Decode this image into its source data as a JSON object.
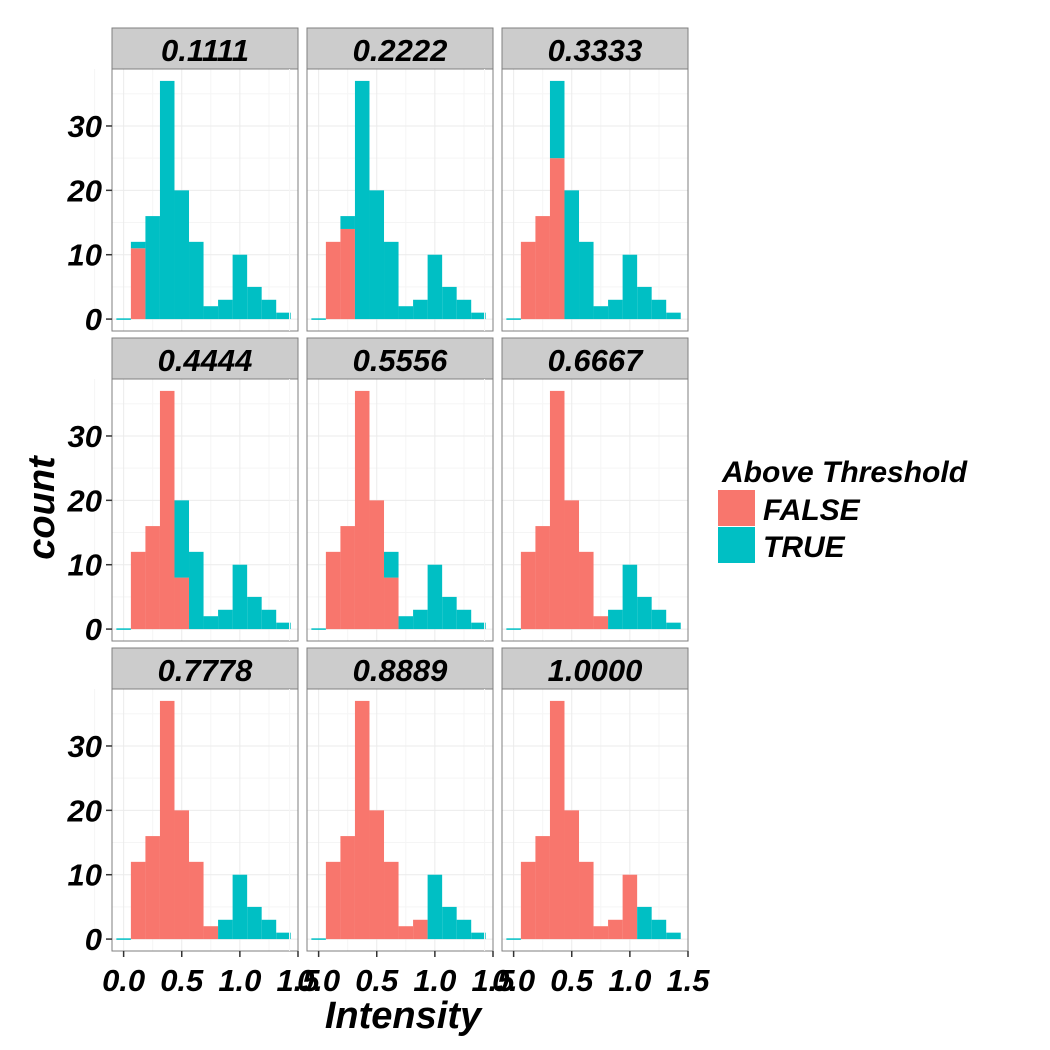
{
  "chart_data": {
    "type": "bar",
    "facets": [
      "0.1111",
      "0.2222",
      "0.3333",
      "0.4444",
      "0.5556",
      "0.6667",
      "0.7778",
      "0.8889",
      "1.0000"
    ],
    "xlabel": "Intensity",
    "ylabel": "count",
    "xlim": [
      -0.1,
      1.5
    ],
    "ylim": [
      0,
      37
    ],
    "x_ticks": [
      "0.0",
      "0.5",
      "1.0",
      "1.5"
    ],
    "y_ticks": [
      "0",
      "10",
      "20",
      "30"
    ],
    "grid": true,
    "legend": {
      "title": "Above Threshold",
      "position": "right",
      "entries": [
        "FALSE",
        "TRUE"
      ]
    },
    "colors": {
      "FALSE": "#F8766D",
      "TRUE": "#00BFC4",
      "strip": "#cccccc",
      "panel": "#ffffff",
      "grid": "#ebebeb"
    },
    "bin_width": 0.125,
    "bin_centers": [
      0.0,
      0.125,
      0.25,
      0.375,
      0.5,
      0.625,
      0.75,
      0.875,
      1.0,
      1.125,
      1.25,
      1.375
    ],
    "totals": [
      0,
      12,
      16,
      37,
      20,
      12,
      2,
      3,
      10,
      5,
      3,
      1
    ],
    "false_counts": [
      [
        0,
        11,
        0,
        0,
        0,
        0,
        0,
        0,
        0,
        0,
        0,
        0
      ],
      [
        0,
        12,
        14,
        0,
        0,
        0,
        0,
        0,
        0,
        0,
        0,
        0
      ],
      [
        0,
        12,
        16,
        25,
        0,
        0,
        0,
        0,
        0,
        0,
        0,
        0
      ],
      [
        0,
        12,
        16,
        37,
        8,
        0,
        0,
        0,
        0,
        0,
        0,
        0
      ],
      [
        0,
        12,
        16,
        37,
        20,
        8,
        0,
        0,
        0,
        0,
        0,
        0
      ],
      [
        0,
        12,
        16,
        37,
        20,
        12,
        2,
        0,
        0,
        0,
        0,
        0
      ],
      [
        0,
        12,
        16,
        37,
        20,
        12,
        2,
        0,
        0,
        0,
        0,
        0
      ],
      [
        0,
        12,
        16,
        37,
        20,
        12,
        2,
        3,
        0,
        0,
        0,
        0
      ],
      [
        0,
        12,
        16,
        37,
        20,
        12,
        2,
        3,
        10,
        0,
        0,
        0
      ]
    ]
  }
}
